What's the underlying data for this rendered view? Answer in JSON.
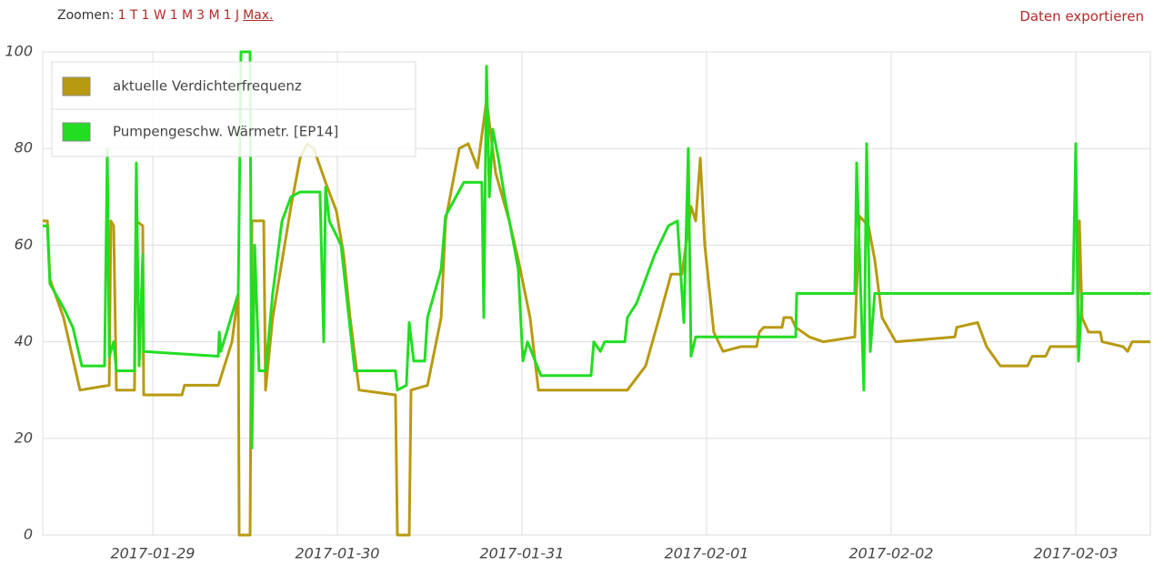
{
  "toolbar": {
    "label": "Zoomen:",
    "zoom_links": [
      "1 T",
      "1 W",
      "1 M",
      "3 M",
      "1 J",
      "Max."
    ],
    "export": "Daten exportieren"
  },
  "chart_data": {
    "type": "line",
    "xlim": [
      0.404,
      6.404
    ],
    "xticks": [
      {
        "value": 1,
        "label": "2017-01-29"
      },
      {
        "value": 2,
        "label": "2017-01-30"
      },
      {
        "value": 3,
        "label": "2017-01-31"
      },
      {
        "value": 4,
        "label": "2017-02-01"
      },
      {
        "value": 5,
        "label": "2017-02-02"
      },
      {
        "value": 6,
        "label": "2017-02-03"
      }
    ],
    "ylim": [
      0,
      100
    ],
    "yticks": [
      0,
      20,
      40,
      60,
      80,
      100
    ],
    "grid": true,
    "legend": "top-left",
    "series": [
      {
        "name": "aktuelle Verdichterfrequenz",
        "color": "#b89a10",
        "x": [
          0.404,
          0.429,
          0.443,
          0.517,
          0.606,
          0.764,
          0.773,
          0.788,
          0.803,
          0.901,
          0.911,
          0.946,
          0.951,
          1.158,
          1.172,
          1.355,
          1.429,
          1.463,
          1.468,
          1.527,
          1.537,
          1.601,
          1.611,
          1.65,
          1.749,
          1.798,
          1.837,
          1.872,
          1.936,
          1.995,
          2.034,
          2.069,
          2.118,
          2.315,
          2.325,
          2.389,
          2.399,
          2.488,
          2.562,
          2.586,
          2.66,
          2.709,
          2.759,
          2.808,
          2.857,
          2.931,
          2.98,
          3.044,
          3.089,
          3.571,
          3.67,
          3.744,
          3.808,
          3.867,
          3.916,
          3.941,
          3.966,
          3.99,
          4.039,
          4.089,
          4.187,
          4.271,
          4.286,
          4.31,
          4.409,
          4.419,
          4.458,
          4.483,
          4.557,
          4.631,
          4.803,
          4.828,
          4.877,
          4.911,
          4.951,
          5.025,
          5.345,
          5.355,
          5.468,
          5.517,
          5.591,
          5.739,
          5.764,
          5.837,
          5.862,
          6.01,
          6.02,
          6.034,
          6.069,
          6.133,
          6.143,
          6.256,
          6.281,
          6.305,
          6.404
        ],
        "values": [
          65,
          65,
          53,
          45,
          30,
          31,
          65,
          64,
          30,
          30,
          65,
          64,
          29,
          29,
          31,
          31,
          40,
          50,
          0,
          0,
          65,
          65,
          30,
          45,
          68,
          78,
          81,
          80,
          73,
          67,
          58,
          45,
          30,
          29,
          0,
          0,
          30,
          31,
          45,
          65,
          80,
          81,
          76,
          90,
          75,
          65,
          57,
          45,
          30,
          30,
          35,
          45,
          54,
          54,
          68,
          65,
          78,
          60,
          42,
          38,
          39,
          39,
          42,
          43,
          43,
          45,
          45,
          43,
          41,
          40,
          41,
          66,
          64,
          57,
          45,
          40,
          41,
          43,
          44,
          39,
          35,
          35,
          37,
          37,
          39,
          39,
          65,
          45,
          42,
          42,
          40,
          39,
          38,
          40,
          40
        ]
      },
      {
        "name": "Pumpengeschw. Wärmetr. [EP14]",
        "color": "#22dd22",
        "x": [
          0.404,
          0.429,
          0.443,
          0.517,
          0.567,
          0.616,
          0.739,
          0.754,
          0.764,
          0.788,
          0.803,
          0.901,
          0.911,
          0.926,
          0.946,
          0.951,
          1.355,
          1.36,
          1.369,
          1.463,
          1.478,
          1.527,
          1.537,
          1.552,
          1.576,
          1.611,
          1.65,
          1.7,
          1.749,
          1.798,
          1.906,
          1.926,
          1.936,
          1.956,
          1.995,
          2.02,
          2.094,
          2.315,
          2.325,
          2.374,
          2.389,
          2.414,
          2.473,
          2.488,
          2.562,
          2.586,
          2.685,
          2.783,
          2.793,
          2.808,
          2.823,
          2.842,
          2.872,
          2.906,
          2.956,
          2.98,
          3.005,
          3.03,
          3.103,
          3.374,
          3.389,
          3.424,
          3.448,
          3.557,
          3.571,
          3.621,
          3.719,
          3.793,
          3.842,
          3.877,
          3.901,
          3.916,
          3.941,
          3.966,
          4.483,
          4.488,
          4.803,
          4.813,
          4.837,
          4.852,
          4.867,
          4.887,
          4.911,
          5.985,
          6.0,
          6.015,
          6.034,
          6.404
        ],
        "values": [
          64,
          64,
          52,
          47,
          43,
          35,
          35,
          80,
          37,
          40,
          34,
          34,
          77,
          35,
          58,
          38,
          37,
          42,
          38,
          50,
          100,
          100,
          18,
          60,
          34,
          34,
          50,
          65,
          70,
          71,
          71,
          40,
          72,
          65,
          62,
          60,
          34,
          34,
          30,
          31,
          44,
          36,
          36,
          45,
          55,
          66,
          73,
          73,
          45,
          97,
          70,
          84,
          78,
          70,
          60,
          55,
          36,
          40,
          33,
          33,
          40,
          38,
          40,
          40,
          45,
          48,
          58,
          64,
          65,
          44,
          80,
          37,
          41,
          41,
          41,
          50,
          50,
          77,
          48,
          30,
          81,
          38,
          50,
          50,
          81,
          36,
          50,
          50
        ]
      }
    ]
  }
}
